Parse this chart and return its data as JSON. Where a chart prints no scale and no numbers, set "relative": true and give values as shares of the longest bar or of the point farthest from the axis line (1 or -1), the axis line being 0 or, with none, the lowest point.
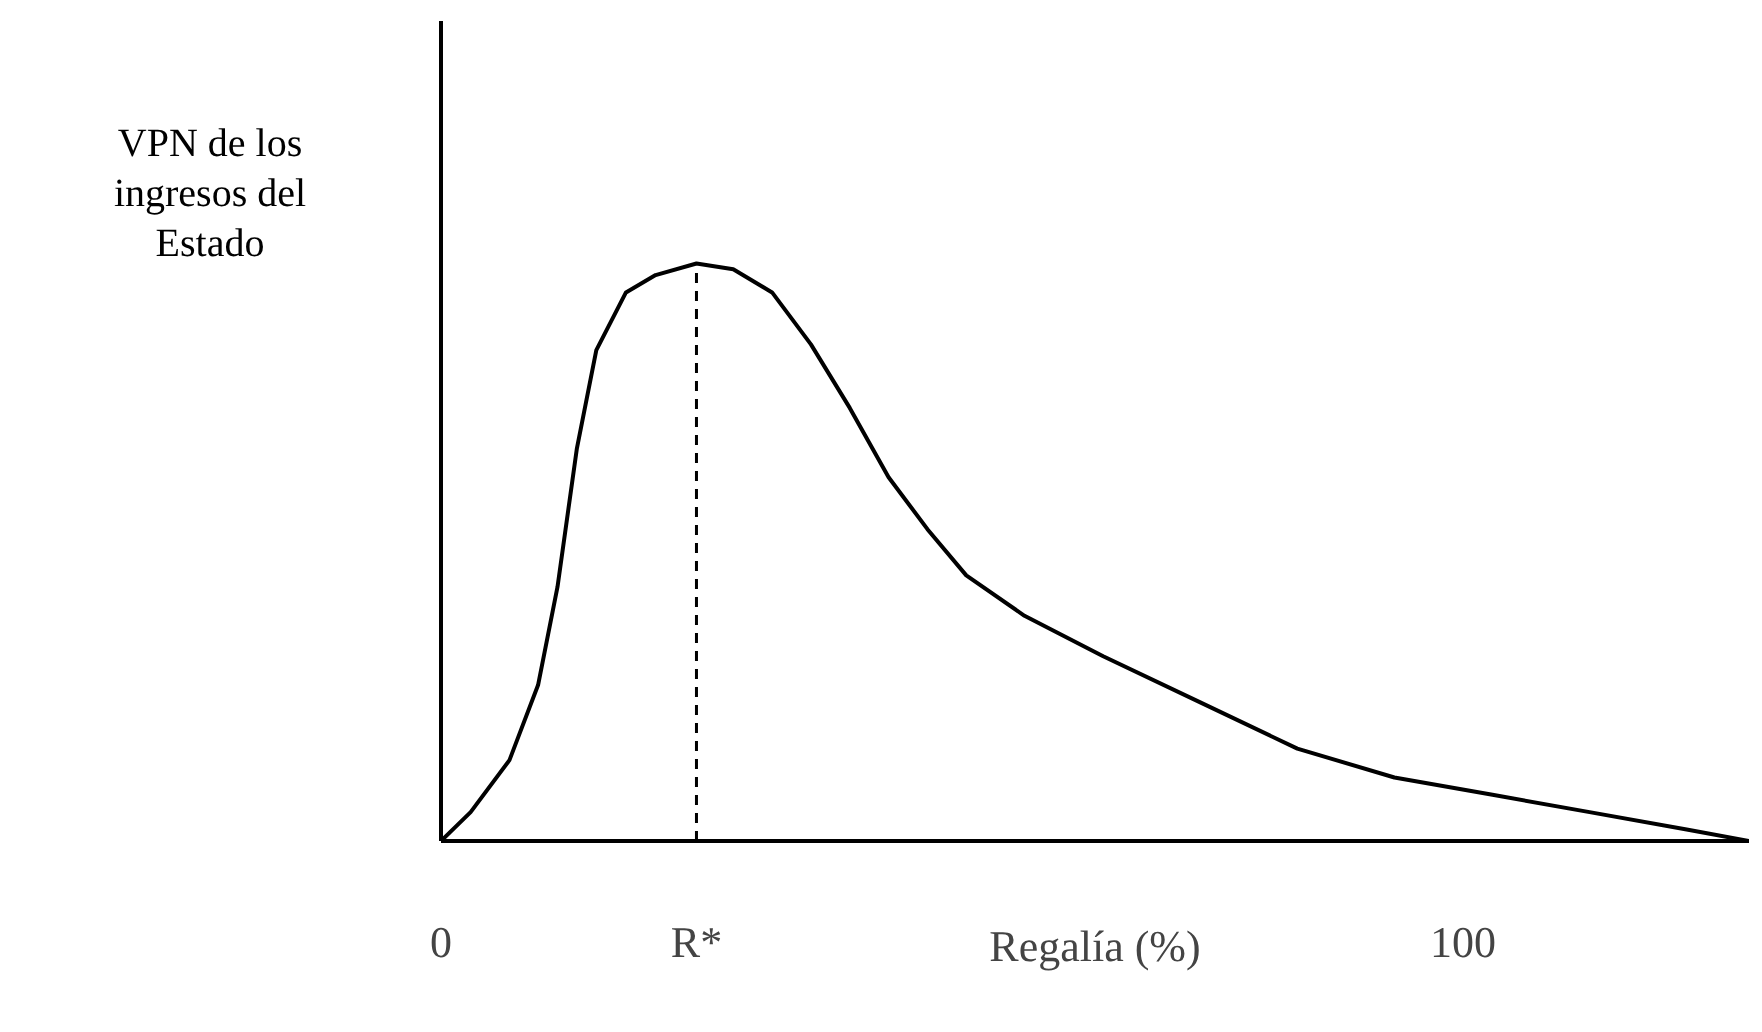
{
  "chart_data": {
    "type": "line",
    "relative": true,
    "ylabel": "VPN de los ingresos del Estado",
    "xlabel": "Regalía (%)",
    "xlim": [
      0,
      128
    ],
    "xticks": [
      0,
      {
        "value": 25,
        "label": "R*"
      },
      100
    ],
    "tick_labels": "x",
    "grid": false,
    "line_style": "solid",
    "series": [
      {
        "color": "#000000",
        "x": [
          0,
          2.9,
          6.7,
          9.5,
          11.4,
          13.3,
          15.2,
          18.1,
          21,
          25,
          28.6,
          32.4,
          36.2,
          40,
          43.8,
          47.6,
          51.4,
          57.1,
          64.8,
          74.3,
          83.8,
          93.3,
          102.9,
          112.4,
          121.9,
          128
        ],
        "values": [
          0,
          0.05,
          0.14,
          0.27,
          0.44,
          0.68,
          0.85,
          0.95,
          0.98,
          1,
          0.99,
          0.95,
          0.86,
          0.75,
          0.63,
          0.54,
          0.46,
          0.39,
          0.32,
          0.24,
          0.16,
          0.11,
          0.08,
          0.05,
          0.02,
          0
        ]
      }
    ],
    "ref_lines": [
      {
        "axis": "x",
        "value": 25,
        "label": null,
        "line_style": "dashed",
        "color": "#000000"
      }
    ]
  }
}
